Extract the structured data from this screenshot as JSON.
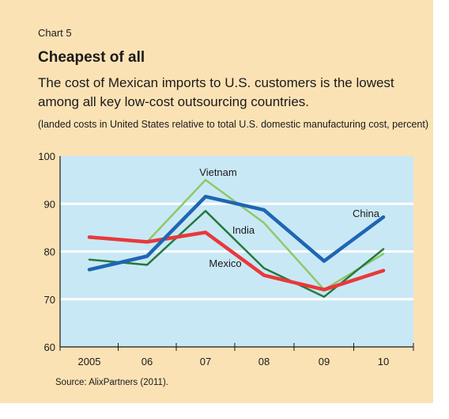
{
  "header": {
    "chart_number": "Chart 5",
    "title": "Cheapest of all",
    "subtitle": "The cost of Mexican imports to U.S. customers is the lowest among all key low-cost outsourcing countries.",
    "note": "(landed costs in United States relative to total U.S. domestic manufacturing cost, percent)"
  },
  "footer": {
    "source": "Source: AlixPartners (2011)."
  },
  "colors": {
    "panel": "#fbe2b5",
    "plot_bg": "#c9e8f6",
    "china": "#1e66b3",
    "mexico": "#e8393a",
    "india": "#237a3c",
    "vietnam": "#8dc967"
  },
  "chart_data": {
    "type": "line",
    "categories": [
      "2005",
      "06",
      "07",
      "08",
      "09",
      "10"
    ],
    "ylim": [
      60,
      100
    ],
    "yticks": [
      "60",
      "70",
      "80",
      "90",
      "100"
    ],
    "grid": true,
    "xlabel": "",
    "ylabel": "",
    "series": [
      {
        "key": "vietnam",
        "name": "Vietnam",
        "values": [
          null,
          82,
          95,
          86,
          72,
          79.5
        ]
      },
      {
        "key": "india",
        "name": "India",
        "values": [
          78.3,
          77.2,
          88.5,
          76.5,
          70.5,
          80.5
        ]
      },
      {
        "key": "mexico",
        "name": "Mexico",
        "values": [
          83,
          82,
          84,
          75,
          72,
          76
        ]
      },
      {
        "key": "china",
        "name": "China",
        "values": [
          76.2,
          79,
          91.5,
          88.7,
          78,
          87.2
        ]
      }
    ]
  }
}
